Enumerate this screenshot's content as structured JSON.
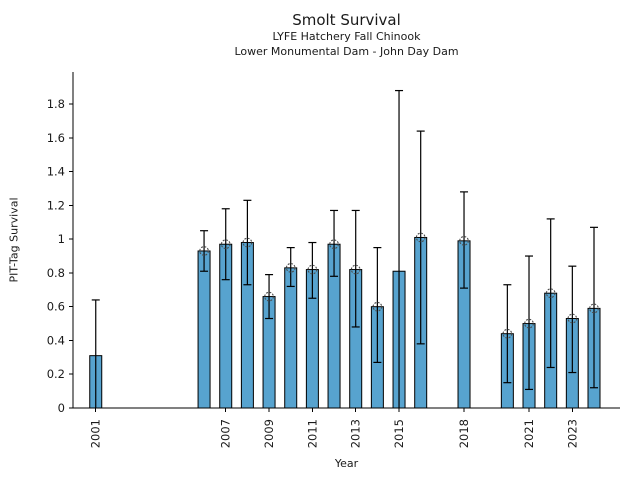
{
  "chart_data": {
    "type": "bar",
    "title": "Smolt Survival",
    "subtitle_lines": [
      "LYFE Hatchery Fall Chinook",
      "Lower Monumental Dam - John Day Dam"
    ],
    "xlabel": "Year",
    "ylabel": "PIT-Tag Survival",
    "xlim": [
      1999.95,
      2025.2
    ],
    "ylim": [
      0,
      1.99
    ],
    "grid": "off",
    "legend": "none",
    "bar_color": "#57A3CF",
    "bar_edge_color": "#000000",
    "errorbar_color": "#000000",
    "marker_style": "dashed-open-circle",
    "marker_color": "#4d4d4d",
    "ytick_values": [
      0,
      0.2,
      0.4,
      0.6,
      0.8,
      1,
      1.2,
      1.4,
      1.6,
      1.8
    ],
    "ytick_labels": [
      "0",
      "0.2",
      "0.4",
      "0.6",
      "0.8",
      "1",
      "1.2",
      "1.4",
      "1.6",
      "1.8"
    ],
    "xtick_values": [
      2001,
      2007,
      2009,
      2011,
      2013,
      2015,
      2018,
      2021,
      2023
    ],
    "xtick_labels": [
      "2001",
      "2007",
      "2009",
      "2011",
      "2013",
      "2015",
      "2018",
      "2021",
      "2023"
    ],
    "series": [
      {
        "year": 2001,
        "value": 0.31,
        "err_low": 0.0,
        "err_high": 0.64,
        "marker": false
      },
      {
        "year": 2006,
        "value": 0.93,
        "err_low": 0.81,
        "err_high": 1.05,
        "marker": true
      },
      {
        "year": 2007,
        "value": 0.97,
        "err_low": 0.76,
        "err_high": 1.18,
        "marker": true
      },
      {
        "year": 2008,
        "value": 0.98,
        "err_low": 0.73,
        "err_high": 1.23,
        "marker": true
      },
      {
        "year": 2009,
        "value": 0.66,
        "err_low": 0.53,
        "err_high": 0.79,
        "marker": true
      },
      {
        "year": 2010,
        "value": 0.83,
        "err_low": 0.72,
        "err_high": 0.95,
        "marker": true
      },
      {
        "year": 2011,
        "value": 0.82,
        "err_low": 0.65,
        "err_high": 0.98,
        "marker": true
      },
      {
        "year": 2012,
        "value": 0.97,
        "err_low": 0.78,
        "err_high": 1.17,
        "marker": true
      },
      {
        "year": 2013,
        "value": 0.82,
        "err_low": 0.48,
        "err_high": 1.17,
        "marker": true
      },
      {
        "year": 2014,
        "value": 0.6,
        "err_low": 0.27,
        "err_high": 0.95,
        "marker": true
      },
      {
        "year": 2015,
        "value": 0.81,
        "err_low": 0.0,
        "err_high": 1.88,
        "marker": false
      },
      {
        "year": 2016,
        "value": 1.01,
        "err_low": 0.38,
        "err_high": 1.64,
        "marker": true
      },
      {
        "year": 2018,
        "value": 0.99,
        "err_low": 0.71,
        "err_high": 1.28,
        "marker": true
      },
      {
        "year": 2020,
        "value": 0.44,
        "err_low": 0.15,
        "err_high": 0.73,
        "marker": true
      },
      {
        "year": 2021,
        "value": 0.5,
        "err_low": 0.11,
        "err_high": 0.9,
        "marker": true
      },
      {
        "year": 2022,
        "value": 0.68,
        "err_low": 0.24,
        "err_high": 1.12,
        "marker": true
      },
      {
        "year": 2023,
        "value": 0.53,
        "err_low": 0.21,
        "err_high": 0.84,
        "marker": true
      },
      {
        "year": 2024,
        "value": 0.59,
        "err_low": 0.12,
        "err_high": 1.07,
        "marker": true
      }
    ]
  }
}
